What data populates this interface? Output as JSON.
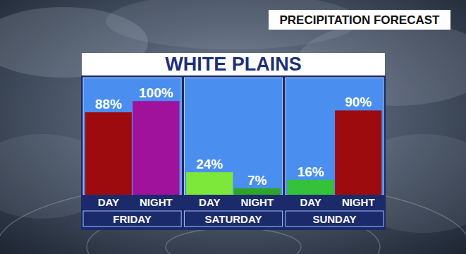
{
  "chart_data": {
    "type": "bar",
    "title": "WHITE PLAINS",
    "subtitle": "PRECIPITATION FORECAST",
    "categories": [
      "DAY",
      "NIGHT"
    ],
    "series": [
      {
        "name": "FRIDAY",
        "values": [
          88,
          100
        ],
        "value_labels": [
          "88%",
          "100%"
        ],
        "colors": [
          "#9e0b0f",
          "#a0119c"
        ]
      },
      {
        "name": "SATURDAY",
        "values": [
          24,
          7
        ],
        "value_labels": [
          "24%",
          "7%"
        ],
        "colors": [
          "#7ee83a",
          "#2ea52a"
        ]
      },
      {
        "name": "SUNDAY",
        "values": [
          16,
          90
        ],
        "value_labels": [
          "16%",
          "90%"
        ],
        "colors": [
          "#33c23a",
          "#9e0b0f"
        ]
      }
    ],
    "ylim": [
      0,
      125
    ],
    "tick_labels": "x",
    "data_labels": true
  }
}
